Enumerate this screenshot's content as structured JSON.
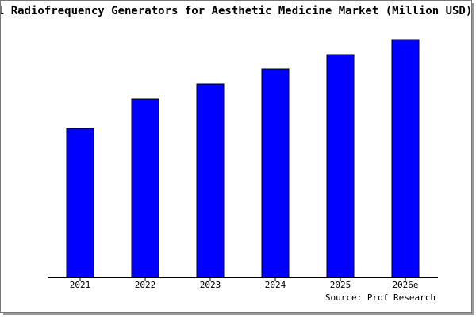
{
  "chart_data": {
    "type": "bar",
    "title": "Global Radiofrequency Generators for Aesthetic Medicine Market (Million USD)",
    "source": "Source: Prof Research",
    "categories": [
      "2021",
      "2022",
      "2023",
      "2024",
      "2025",
      "2026e"
    ],
    "values": [
      188,
      225,
      244,
      263,
      281,
      300
    ],
    "color": "#0000ff",
    "ylim": [
      0,
      300
    ]
  }
}
